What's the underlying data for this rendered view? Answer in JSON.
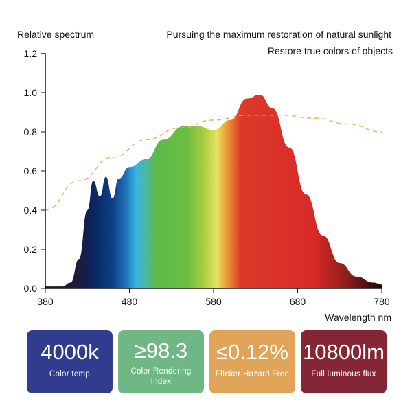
{
  "chart_data": {
    "type": "area",
    "ylabel": "Relative spectrum",
    "xlabel": "Wavelength nm",
    "annotations": [
      "Pursuing the maximum restoration of natural sunlight",
      "Restore true colors of objects"
    ],
    "xlim": [
      380,
      780
    ],
    "ylim": [
      0,
      1.2
    ],
    "x_ticks": [
      "380",
      "480",
      "580",
      "680",
      "780"
    ],
    "y_ticks": [
      "0.0",
      "0.2",
      "0.4",
      "0.6",
      "0.8",
      "1.0",
      "1.2"
    ],
    "grid": false,
    "series": [
      {
        "style": "filled spectrum gradient",
        "x": [
          380,
          400,
          410,
          420,
          430,
          437,
          445,
          452,
          460,
          467,
          480,
          500,
          520,
          545,
          560,
          580,
          600,
          620,
          635,
          650,
          670,
          690,
          710,
          730,
          750,
          770,
          780
        ],
        "y": [
          0.01,
          0.01,
          0.03,
          0.15,
          0.4,
          0.55,
          0.47,
          0.57,
          0.46,
          0.56,
          0.62,
          0.66,
          0.76,
          0.83,
          0.83,
          0.81,
          0.86,
          0.97,
          0.99,
          0.92,
          0.72,
          0.48,
          0.27,
          0.13,
          0.06,
          0.03,
          0.02
        ]
      },
      {
        "style": "dashed",
        "color": "#f0b060",
        "x": [
          380,
          420,
          460,
          500,
          540,
          580,
          620,
          660,
          700,
          740,
          780
        ],
        "y": [
          0.4,
          0.55,
          0.67,
          0.76,
          0.82,
          0.86,
          0.885,
          0.885,
          0.87,
          0.84,
          0.8
        ]
      }
    ]
  },
  "cards": [
    {
      "value": "4000k",
      "label": "Color temp",
      "color": "#323c8e"
    },
    {
      "value": "≥98.3",
      "label": "Color Rendering Index",
      "color": "#6fb886"
    },
    {
      "value": "≤0.12%",
      "label": "FlIcker Hazard Free",
      "color": "#dfa458"
    },
    {
      "value": "10800lm",
      "label": "Full luminous flux",
      "color": "#852636"
    }
  ]
}
